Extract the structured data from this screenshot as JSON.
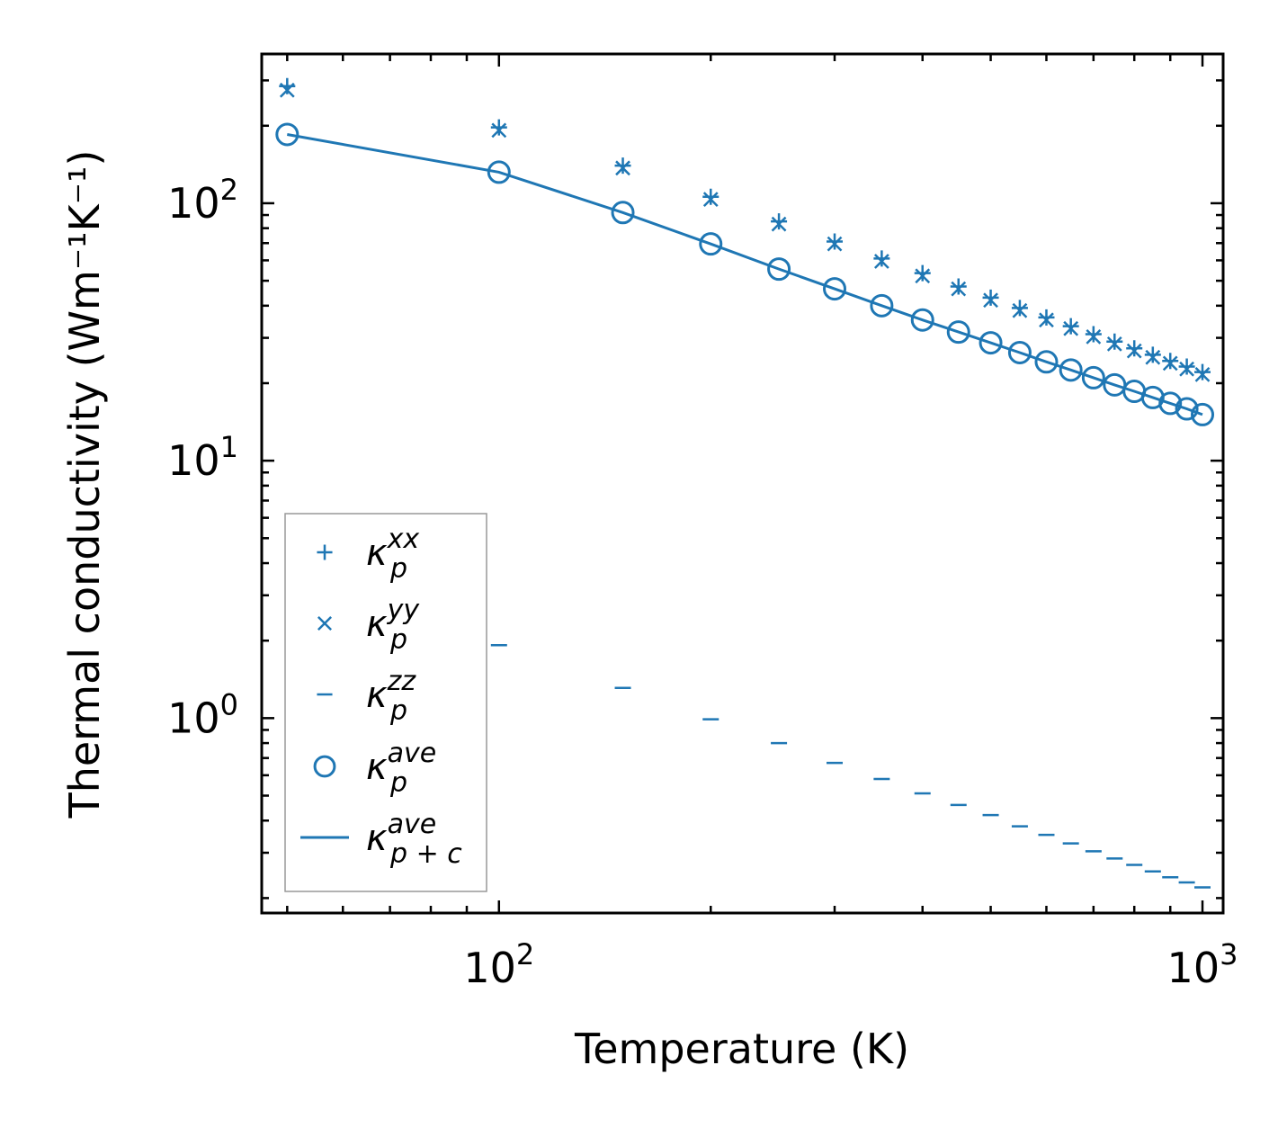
{
  "chart_data": {
    "type": "scatter",
    "xscale": "log",
    "yscale": "log",
    "xlabel": "Temperature (K)",
    "ylabel": "Thermal conductivity (Wm⁻¹K⁻¹)",
    "xlim": [
      46,
      1070
    ],
    "ylim": [
      0.175,
      380
    ],
    "x_ticks": [
      {
        "value": 100,
        "base": "10",
        "exp": "2"
      },
      {
        "value": 1000,
        "base": "10",
        "exp": "3"
      }
    ],
    "y_ticks": [
      {
        "value": 1,
        "base": "10",
        "exp": "0"
      },
      {
        "value": 10,
        "base": "10",
        "exp": "1"
      },
      {
        "value": 100,
        "base": "10",
        "exp": "2"
      }
    ],
    "color": "#1f77b4",
    "x": [
      50,
      100,
      150,
      200,
      250,
      300,
      350,
      400,
      450,
      500,
      550,
      600,
      650,
      700,
      750,
      800,
      850,
      900,
      950,
      1000
    ],
    "series": [
      {
        "name": "kappa_p_xx",
        "marker": "plus",
        "label": {
          "base": "κ",
          "sub": "p",
          "sup": "xx"
        },
        "values": [
          285,
          197,
          140,
          106,
          85,
          71,
          61,
          53.5,
          47.5,
          43,
          39.2,
          36,
          33.3,
          31,
          29,
          27.3,
          25.8,
          24.4,
          23.2,
          22.1
        ]
      },
      {
        "name": "kappa_p_yy",
        "marker": "x",
        "label": {
          "base": "κ",
          "sub": "p",
          "sup": "yy"
        },
        "values": [
          275,
          192,
          137,
          103.5,
          83,
          69.5,
          59.5,
          52.2,
          46.5,
          42,
          38.3,
          35.2,
          32.6,
          30.3,
          28.4,
          26.7,
          25.2,
          23.9,
          22.7,
          21.6
        ]
      },
      {
        "name": "kappa_p_zz",
        "marker": "hline",
        "label": {
          "base": "κ",
          "sub": "p",
          "sup": "zz"
        },
        "values": [
          null,
          1.92,
          1.31,
          0.99,
          0.8,
          0.67,
          0.58,
          0.51,
          0.46,
          0.42,
          0.38,
          0.352,
          0.326,
          0.304,
          0.285,
          0.269,
          0.254,
          0.241,
          0.23,
          0.22
        ]
      },
      {
        "name": "kappa_p_ave",
        "marker": "circle",
        "label": {
          "base": "κ",
          "sub": "p",
          "sup": "ave"
        },
        "values": [
          185,
          132,
          92,
          69.5,
          55.5,
          46.5,
          40,
          35.2,
          31.6,
          28.7,
          26.3,
          24.2,
          22.5,
          21,
          19.7,
          18.6,
          17.6,
          16.7,
          15.9,
          15.1
        ]
      },
      {
        "name": "kappa_pc_ave",
        "marker": "line",
        "label": {
          "base": "κ",
          "sub": "p + c",
          "sup": "ave"
        },
        "values": [
          185,
          132,
          92,
          69.5,
          55.5,
          46.5,
          40,
          35.2,
          31.6,
          28.7,
          26.3,
          24.2,
          22.5,
          21,
          19.7,
          18.6,
          17.6,
          16.7,
          15.9,
          15.1
        ]
      }
    ],
    "legend_position": "lower-left",
    "grid": false
  }
}
